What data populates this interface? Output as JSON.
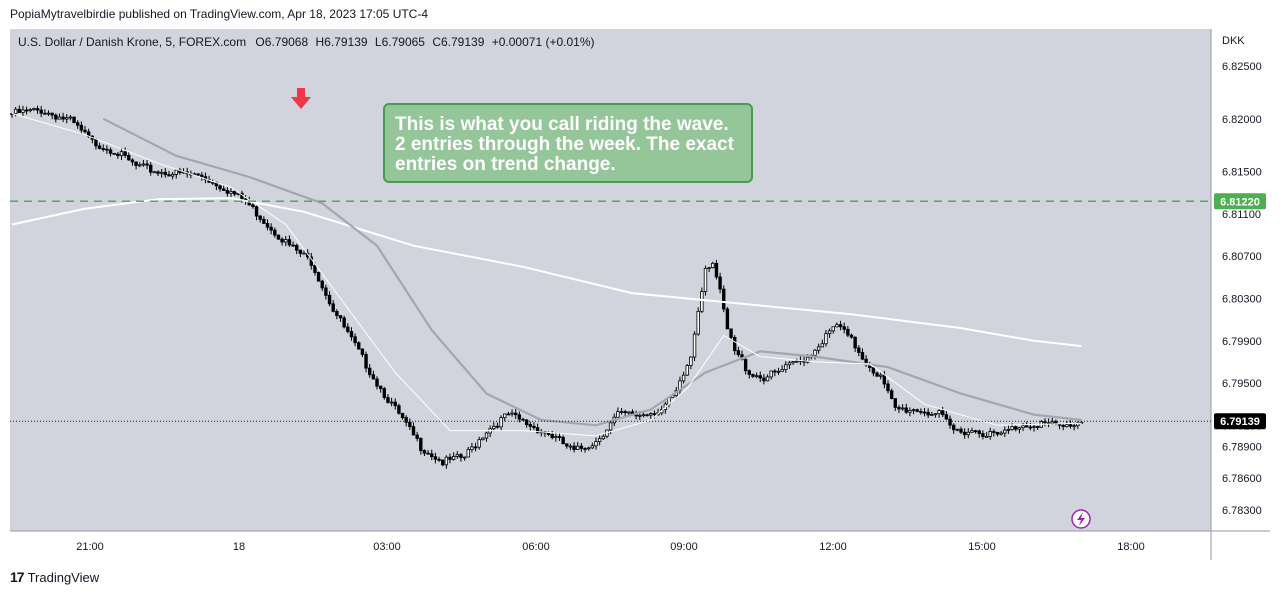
{
  "header": {
    "published_by": "PopiaMytravelbirdie published on TradingView.com, Apr 18, 2023 17:05 UTC-4"
  },
  "legend": {
    "symbol": "U.S. Dollar / Danish Krone, 5, FOREX.com",
    "open_label": "O",
    "open": "6.79068",
    "high_label": "H",
    "high": "6.79139",
    "low_label": "L",
    "low": "6.79065",
    "close_label": "C",
    "close": "6.79139",
    "change": "+0.00071 (+0.01%)"
  },
  "annotation": {
    "lines": [
      "This is what you call riding the wave.",
      "2 entries through the week. The exact",
      "entries on trend change."
    ]
  },
  "footer": {
    "brand": "TradingView",
    "logo_text": "17"
  },
  "colors": {
    "background": "#d1d4dc",
    "candle": "#000000",
    "dashed_line": "#4caf50",
    "price_badge_green": "#4caf50",
    "price_badge_dark": "#000000",
    "arrow": "#f23645",
    "ma_white": "#ffffff",
    "ma_gray": "#a3a6af"
  },
  "chart_data": {
    "type": "candlestick",
    "currency": "DKK",
    "y_ticks": [
      "6.82500",
      "6.82000",
      "6.81500",
      "6.81100",
      "6.80700",
      "6.80300",
      "6.79900",
      "6.79500",
      "6.79100",
      "6.78900",
      "6.78600",
      "6.78300"
    ],
    "ylim": [
      6.781,
      6.8285
    ],
    "x_ticks": [
      "21:00",
      "18",
      "03:00",
      "06:00",
      "09:00",
      "12:00",
      "15:00",
      "18:00"
    ],
    "horizontal_line": {
      "value": "6.81220",
      "style": "dashed"
    },
    "last_price": "6.79139",
    "close_path": [
      [
        0,
        6.8205
      ],
      [
        8,
        6.8208
      ],
      [
        16,
        6.8198
      ],
      [
        22,
        6.8178
      ],
      [
        28,
        6.817
      ],
      [
        34,
        6.8155
      ],
      [
        40,
        6.815
      ],
      [
        46,
        6.8148
      ],
      [
        52,
        6.8146
      ],
      [
        58,
        6.8135
      ],
      [
        64,
        6.8122
      ],
      [
        70,
        6.81
      ],
      [
        76,
        6.808
      ],
      [
        82,
        6.8065
      ],
      [
        88,
        6.802
      ],
      [
        94,
        6.7985
      ],
      [
        100,
        6.795
      ],
      [
        106,
        6.792
      ],
      [
        112,
        6.789
      ],
      [
        118,
        6.7875
      ],
      [
        124,
        6.788
      ],
      [
        130,
        6.7905
      ],
      [
        136,
        6.792
      ],
      [
        142,
        6.791
      ],
      [
        148,
        6.79
      ],
      [
        154,
        6.7885
      ],
      [
        160,
        6.7895
      ],
      [
        166,
        6.792
      ],
      [
        172,
        6.792
      ],
      [
        178,
        6.7925
      ],
      [
        182,
        6.794
      ],
      [
        186,
        6.7975
      ],
      [
        188,
        6.802
      ],
      [
        190,
        6.806
      ],
      [
        192,
        6.8065
      ],
      [
        194,
        6.8035
      ],
      [
        196,
        6.8
      ],
      [
        198,
        6.798
      ],
      [
        202,
        6.796
      ],
      [
        206,
        6.7955
      ],
      [
        210,
        6.796
      ],
      [
        214,
        6.7968
      ],
      [
        218,
        6.7975
      ],
      [
        222,
        6.799
      ],
      [
        226,
        6.8005
      ],
      [
        230,
        6.799
      ],
      [
        234,
        6.797
      ],
      [
        238,
        6.7955
      ],
      [
        242,
        6.7925
      ],
      [
        248,
        6.7925
      ],
      [
        254,
        6.792
      ],
      [
        258,
        6.7905
      ],
      [
        264,
        6.7905
      ],
      [
        270,
        6.79
      ],
      [
        276,
        6.791
      ],
      [
        282,
        6.7912
      ],
      [
        288,
        6.7908
      ],
      [
        293,
        6.7914
      ]
    ],
    "ma_white": [
      [
        0,
        6.81
      ],
      [
        20,
        6.8115
      ],
      [
        40,
        6.8124
      ],
      [
        60,
        6.8125
      ],
      [
        80,
        6.8112
      ],
      [
        110,
        6.808
      ],
      [
        140,
        6.806
      ],
      [
        170,
        6.8035
      ],
      [
        200,
        6.8025
      ],
      [
        230,
        6.8015
      ],
      [
        260,
        6.8002
      ],
      [
        280,
        6.799
      ],
      [
        293,
        6.7985
      ]
    ],
    "ma_gray": [
      [
        25,
        6.82
      ],
      [
        45,
        6.8165
      ],
      [
        65,
        6.8145
      ],
      [
        85,
        6.812
      ],
      [
        100,
        6.808
      ],
      [
        115,
        6.8
      ],
      [
        130,
        6.794
      ],
      [
        145,
        6.7915
      ],
      [
        160,
        6.791
      ],
      [
        175,
        6.7925
      ],
      [
        190,
        6.796
      ],
      [
        205,
        6.798
      ],
      [
        220,
        6.7975
      ],
      [
        240,
        6.7965
      ],
      [
        260,
        6.794
      ],
      [
        280,
        6.792
      ],
      [
        293,
        6.7915
      ]
    ],
    "ma_thin": [
      [
        0,
        6.8205
      ],
      [
        20,
        6.8185
      ],
      [
        40,
        6.8158
      ],
      [
        60,
        6.8135
      ],
      [
        75,
        6.81
      ],
      [
        90,
        6.803
      ],
      [
        105,
        6.796
      ],
      [
        120,
        6.7905
      ],
      [
        140,
        6.7905
      ],
      [
        160,
        6.79
      ],
      [
        175,
        6.7915
      ],
      [
        185,
        6.7945
      ],
      [
        195,
        6.7995
      ],
      [
        205,
        6.7975
      ],
      [
        220,
        6.797
      ],
      [
        235,
        6.7968
      ],
      [
        250,
        6.793
      ],
      [
        270,
        6.791
      ],
      [
        293,
        6.7912
      ]
    ]
  }
}
